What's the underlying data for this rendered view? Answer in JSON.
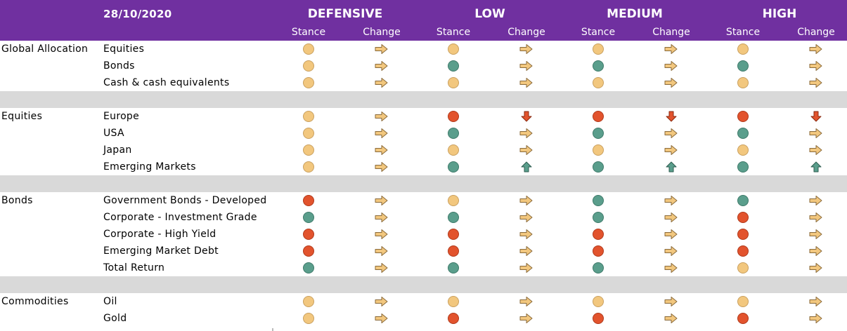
{
  "header": {
    "date": "28/10/2020",
    "profiles": [
      "DEFENSIVE",
      "LOW",
      "MEDIUM",
      "HIGH"
    ],
    "stance_label": "Stance",
    "change_label": "Change",
    "background_color": "#7030a0"
  },
  "legend_colors": {
    "yellow": "#f2c77e",
    "green": "#5a9e8c",
    "red": "#e2532d"
  },
  "sections": [
    {
      "category": "Global Allocation",
      "rows": [
        {
          "label": "Equities",
          "stances": [
            "yellow",
            "yellow",
            "yellow",
            "yellow"
          ],
          "changes": [
            "right",
            "right",
            "right",
            "right"
          ]
        },
        {
          "label": "Bonds",
          "stances": [
            "yellow",
            "green",
            "green",
            "green"
          ],
          "changes": [
            "right",
            "right",
            "right",
            "right"
          ]
        },
        {
          "label": "Cash & cash equivalents",
          "stances": [
            "yellow",
            "yellow",
            "yellow",
            "yellow"
          ],
          "changes": [
            "right",
            "right",
            "right",
            "right"
          ]
        }
      ]
    },
    {
      "category": "Equities",
      "rows": [
        {
          "label": "Europe",
          "stances": [
            "yellow",
            "red",
            "red",
            "red"
          ],
          "changes": [
            "right",
            "down",
            "down",
            "down"
          ]
        },
        {
          "label": "USA",
          "stances": [
            "yellow",
            "green",
            "green",
            "green"
          ],
          "changes": [
            "right",
            "right",
            "right",
            "right"
          ]
        },
        {
          "label": "Japan",
          "stances": [
            "yellow",
            "yellow",
            "yellow",
            "yellow"
          ],
          "changes": [
            "right",
            "right",
            "right",
            "right"
          ]
        },
        {
          "label": "Emerging Markets",
          "stances": [
            "yellow",
            "green",
            "green",
            "green"
          ],
          "changes": [
            "right",
            "up",
            "up",
            "up"
          ]
        }
      ]
    },
    {
      "category": "Bonds",
      "rows": [
        {
          "label": "Government Bonds - Developed",
          "stances": [
            "red",
            "yellow",
            "green",
            "green"
          ],
          "changes": [
            "right",
            "right",
            "right",
            "right"
          ]
        },
        {
          "label": "Corporate - Investment Grade",
          "stances": [
            "green",
            "green",
            "green",
            "red"
          ],
          "changes": [
            "right",
            "right",
            "right",
            "right"
          ]
        },
        {
          "label": "Corporate - High Yield",
          "stances": [
            "red",
            "red",
            "red",
            "red"
          ],
          "changes": [
            "right",
            "right",
            "right",
            "right"
          ]
        },
        {
          "label": "Emerging Market Debt",
          "stances": [
            "red",
            "red",
            "red",
            "red"
          ],
          "changes": [
            "right",
            "right",
            "right",
            "right"
          ]
        },
        {
          "label": "Total Return",
          "stances": [
            "green",
            "green",
            "green",
            "yellow"
          ],
          "changes": [
            "right",
            "right",
            "right",
            "right"
          ]
        }
      ]
    },
    {
      "category": "Commodities",
      "rows": [
        {
          "label": "Oil",
          "stances": [
            "yellow",
            "yellow",
            "yellow",
            "yellow"
          ],
          "changes": [
            "right",
            "right",
            "right",
            "right"
          ]
        },
        {
          "label": "Gold",
          "stances": [
            "yellow",
            "red",
            "red",
            "red"
          ],
          "changes": [
            "right",
            "right",
            "right",
            "right"
          ]
        }
      ]
    }
  ]
}
